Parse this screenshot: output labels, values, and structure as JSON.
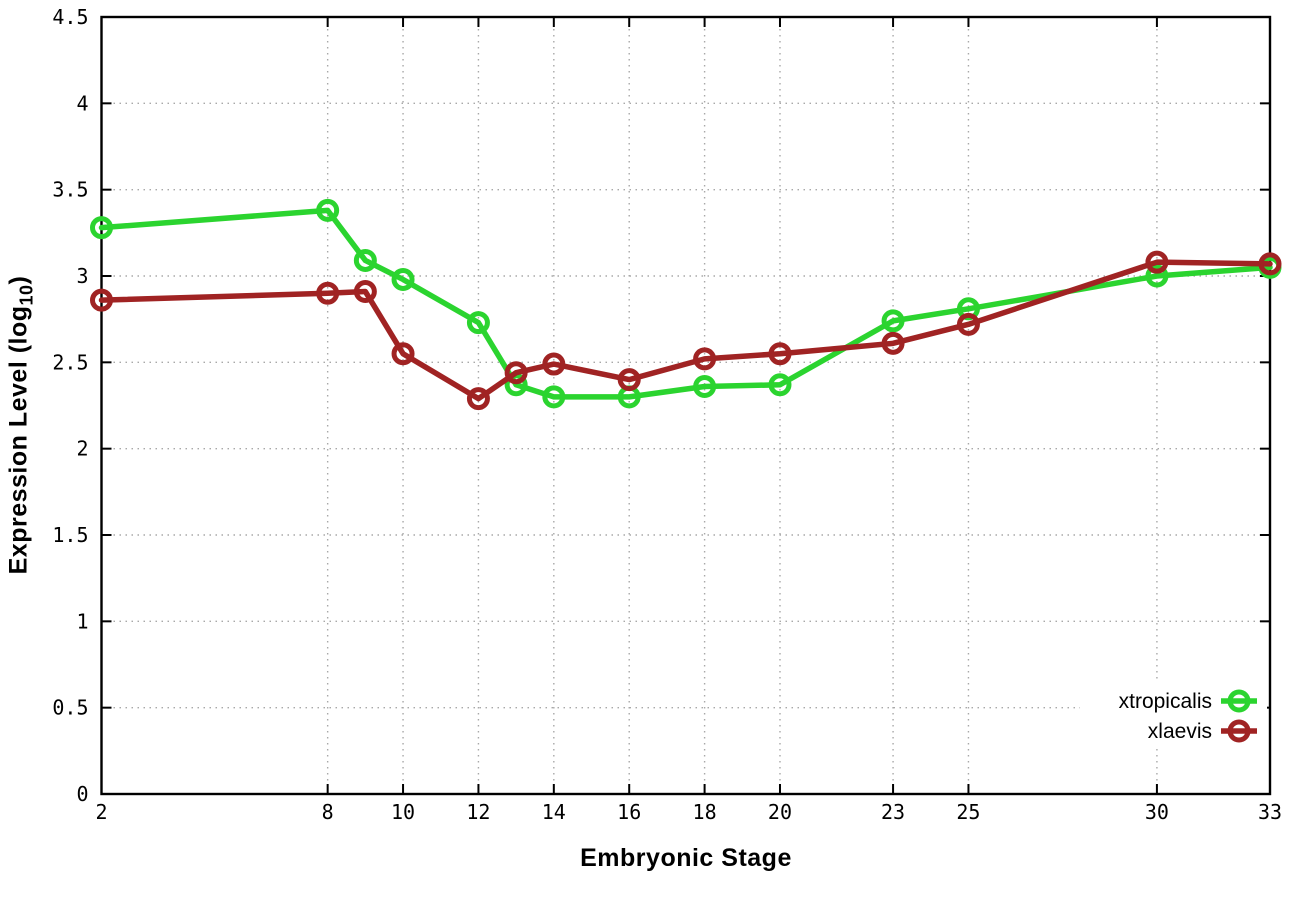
{
  "chart_data": {
    "type": "line",
    "title": "",
    "xlabel": "Embryonic Stage",
    "ylabel": "Expression Level (log10)",
    "ylabel_parts": {
      "prefix": "Expression Level (log",
      "sub": "10",
      "suffix": ")"
    },
    "x": [
      2,
      8,
      9,
      10,
      12,
      13,
      14,
      16,
      18,
      20,
      23,
      25,
      30,
      33
    ],
    "series": [
      {
        "name": "xtropicalis",
        "color": "#2bd42f",
        "marker": "open-circle",
        "values": [
          3.28,
          3.38,
          3.09,
          2.98,
          2.73,
          2.37,
          2.3,
          2.3,
          2.36,
          2.37,
          2.74,
          2.81,
          3.0,
          3.05
        ]
      },
      {
        "name": "xlaevis",
        "color": "#a02323",
        "marker": "open-circle",
        "values": [
          2.86,
          2.9,
          2.91,
          2.55,
          2.29,
          2.44,
          2.49,
          2.4,
          2.52,
          2.55,
          2.61,
          2.72,
          3.08,
          3.07
        ]
      }
    ],
    "xlim": [
      2,
      33
    ],
    "ylim": [
      0,
      4.5
    ],
    "xticks": [
      2,
      8,
      10,
      12,
      14,
      16,
      18,
      20,
      23,
      25,
      30,
      33
    ],
    "yticks": [
      0,
      0.5,
      1,
      1.5,
      2,
      2.5,
      3,
      3.5,
      4,
      4.5
    ],
    "grid": true,
    "grid_color": "#a8a8a8",
    "border_color": "#000000",
    "legend_position": "bottom-right",
    "legend": [
      "xtropicalis",
      "xlaevis"
    ]
  }
}
